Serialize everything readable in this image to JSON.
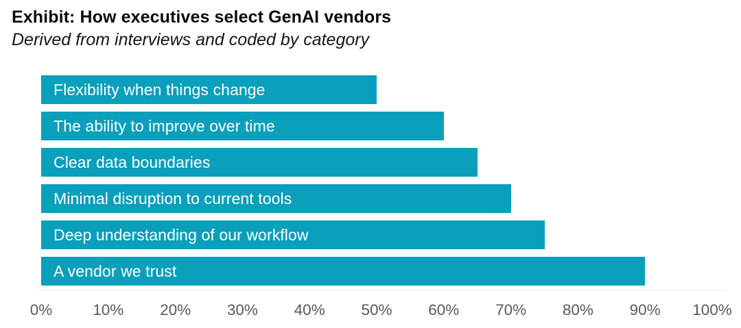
{
  "header": {
    "title": "Exhibit: How executives select GenAI vendors",
    "subtitle": "Derived from interviews and coded by category"
  },
  "chart_data": {
    "type": "bar",
    "orientation": "horizontal",
    "title": "Exhibit: How executives select GenAI vendors",
    "subtitle": "Derived from interviews and coded by category",
    "categories": [
      "Flexibility when things change",
      "The ability to improve over time",
      "Clear data boundaries",
      "Minimal disruption to current tools",
      "Deep understanding of our workflow",
      "A vendor we trust"
    ],
    "values": [
      50,
      60,
      65,
      70,
      75,
      90
    ],
    "unit": "%",
    "xlim": [
      0,
      100
    ],
    "x_ticks": [
      "0%",
      "10%",
      "20%",
      "30%",
      "40%",
      "50%",
      "60%",
      "70%",
      "80%",
      "90%",
      "100%"
    ],
    "xlabel": "",
    "ylabel": "",
    "grid": false,
    "legend": false,
    "category_labels_position": "inside-bar-left",
    "colors": {
      "bar": "#0A9FBB",
      "bar_label_text": "#FFFFFF",
      "axis_tick_text": "#595959",
      "title_text": "#0A0A0A",
      "axis_line": "#ECECEC",
      "background": "#FFFFFF"
    }
  }
}
